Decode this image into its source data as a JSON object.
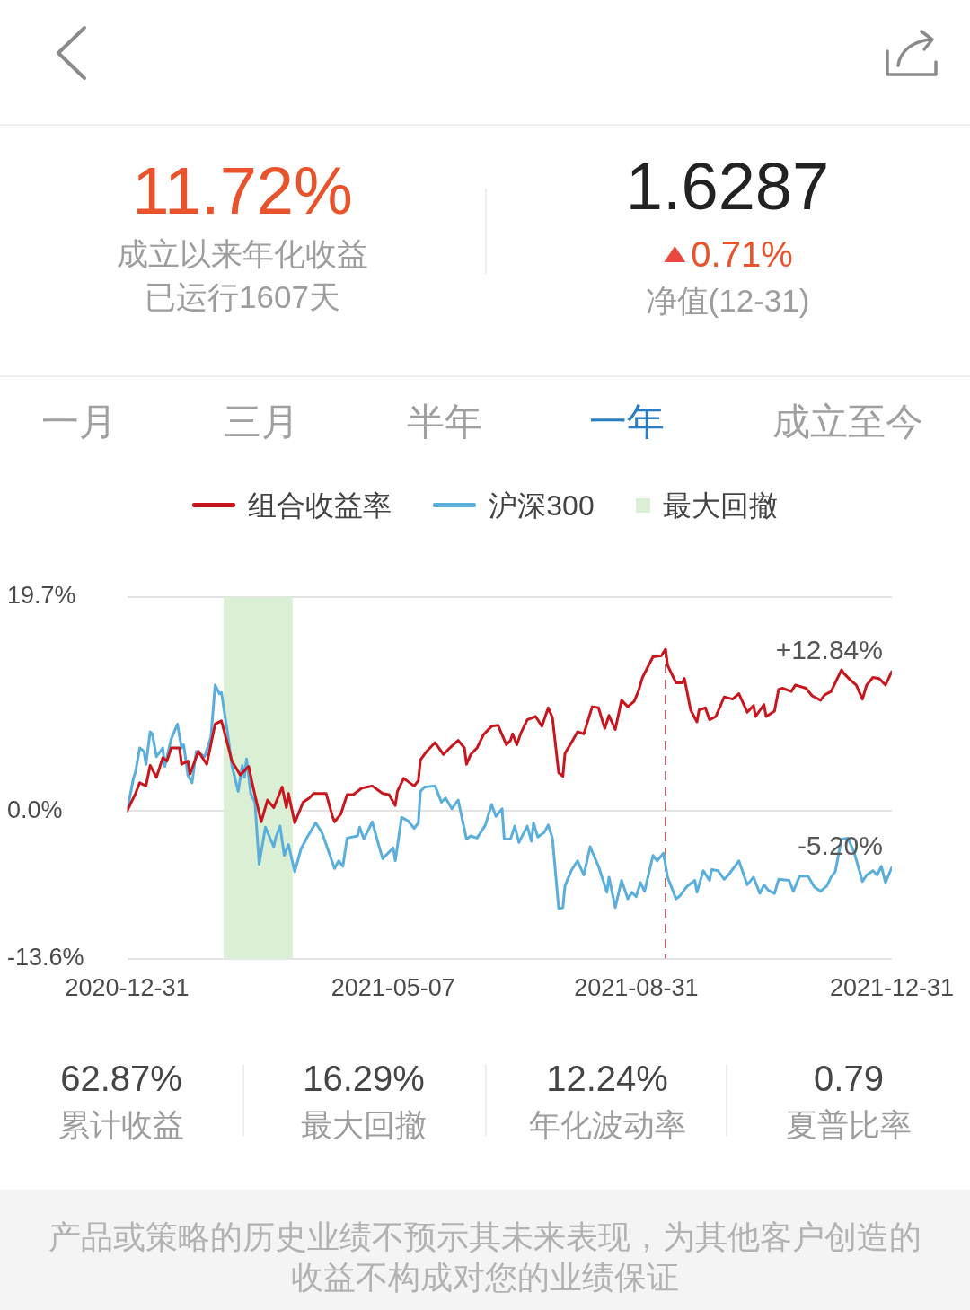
{
  "chart_data": [
    {
      "type": "other",
      "annotations": [
        "11.72%",
        "成立以来年化收益",
        "已运行1607天",
        "1.6287",
        "0.71%",
        "净值(12-31)",
        "一月",
        "三月",
        "半年",
        "一年",
        "成立至今"
      ]
    },
    {
      "type": "line",
      "legend": "top",
      "grid": "y",
      "marker": "none",
      "xlim": [
        "2020-12-31",
        "2021-12-31"
      ],
      "xticks": [
        "2020-12-31",
        "2021-05-07",
        "2021-08-31",
        "2021-12-31"
      ],
      "ylim": [
        -13.6,
        19.7
      ],
      "yticks": [
        {
          "value": 19.7,
          "label": "19.7%"
        },
        {
          "value": 0,
          "label": "0.0%"
        },
        {
          "value": -13.6,
          "label": "-13.6%"
        }
      ],
      "series": [
        {
          "name": "组合收益率",
          "color": "#c8161e",
          "x": [
            "2020-12-31",
            "2021-01-04",
            "2021-01-06",
            "2021-01-09",
            "2021-01-11",
            "2021-01-14",
            "2021-01-17",
            "2021-01-19",
            "2021-01-21",
            "2021-01-25",
            "2021-01-26",
            "2021-01-29",
            "2021-01-30",
            "2021-02-03",
            "2021-02-07",
            "2021-02-11",
            "2021-02-14",
            "2021-02-17",
            "2021-02-19",
            "2021-02-23",
            "2021-02-27",
            "2021-03-01",
            "2021-03-05",
            "2021-03-08",
            "2021-03-11",
            "2021-03-15",
            "2021-03-17",
            "2021-03-18",
            "2021-03-21",
            "2021-03-25",
            "2021-03-28",
            "2021-03-30",
            "2021-04-05",
            "2021-04-08",
            "2021-04-09",
            "2021-04-12",
            "2021-04-15",
            "2021-04-18",
            "2021-04-22",
            "2021-04-27",
            "2021-05-02",
            "2021-05-05",
            "2021-05-08",
            "2021-05-09",
            "2021-05-12",
            "2021-05-17",
            "2021-05-19",
            "2021-05-20",
            "2021-05-23",
            "2021-05-27",
            "2021-05-31",
            "2021-06-03",
            "2021-06-07",
            "2021-06-10",
            "2021-06-11",
            "2021-06-13",
            "2021-06-16",
            "2021-06-19",
            "2021-06-23",
            "2021-06-26",
            "2021-06-30",
            "2021-07-02",
            "2021-07-03",
            "2021-07-05",
            "2021-07-07",
            "2021-07-10",
            "2021-07-14",
            "2021-07-17",
            "2021-07-20",
            "2021-07-22",
            "2021-07-25",
            "2021-07-27",
            "2021-07-28",
            "2021-08-01",
            "2021-08-03",
            "2021-08-06",
            "2021-08-10",
            "2021-08-13",
            "2021-08-16",
            "2021-08-18",
            "2021-08-21",
            "2021-08-24",
            "2021-08-27",
            "2021-08-30",
            "2021-09-01",
            "2021-09-03",
            "2021-09-08",
            "2021-09-12",
            "2021-09-14",
            "2021-09-15",
            "2021-09-19",
            "2021-09-22",
            "2021-09-23",
            "2021-09-26",
            "2021-09-29",
            "2021-09-30",
            "2021-10-03",
            "2021-10-05",
            "2021-10-08",
            "2021-10-12",
            "2021-10-16",
            "2021-10-19",
            "2021-10-23",
            "2021-10-26",
            "2021-10-27",
            "2021-10-31",
            "2021-11-01",
            "2021-11-05",
            "2021-11-07",
            "2021-11-09",
            "2021-11-13",
            "2021-11-15",
            "2021-11-20",
            "2021-11-23",
            "2021-11-27",
            "2021-11-29",
            "2021-12-02",
            "2021-12-07",
            "2021-12-08",
            "2021-12-11",
            "2021-12-14",
            "2021-12-17",
            "2021-12-19",
            "2021-12-22",
            "2021-12-25",
            "2021-12-28",
            "2021-12-31"
          ],
          "values": [
            0,
            1.6,
            2.6,
            2.3,
            4.2,
            3.1,
            4.9,
            4.6,
            5.8,
            5.8,
            4.3,
            4.6,
            3.4,
            5.5,
            4.3,
            8.0,
            8.3,
            6.1,
            4.6,
            3.3,
            4.1,
            2.3,
            -1.0,
            1.0,
            0.3,
            2.2,
            0.3,
            1.6,
            -1.1,
            0.8,
            1.2,
            1.6,
            1.6,
            -0.5,
            -1.0,
            -0.3,
            1.5,
            1.5,
            2.1,
            2.3,
            1.6,
            1.5,
            0.5,
            1.8,
            3.0,
            2.3,
            2.8,
            4.7,
            5.5,
            6.3,
            5.2,
            5.8,
            6.5,
            5.8,
            4.3,
            5.2,
            5.8,
            7.0,
            7.8,
            7.9,
            6.1,
            6.5,
            7.1,
            6.1,
            7.2,
            8.4,
            8.7,
            7.8,
            9.5,
            8.6,
            3.5,
            3.2,
            5.3,
            6.6,
            7.3,
            7.1,
            9.6,
            9.5,
            7.6,
            8.8,
            7.5,
            10.2,
            9.6,
            10.1,
            11.0,
            12.3,
            14.2,
            14.3,
            14.9,
            13.4,
            11.8,
            11.8,
            12.2,
            9.3,
            8.2,
            9.3,
            9.5,
            8.4,
            8.7,
            10.5,
            10.3,
            10.8,
            9.1,
            9.7,
            8.7,
            9.8,
            8.7,
            9.2,
            11.2,
            11.3,
            11.0,
            11.6,
            11.3,
            10.6,
            10.2,
            10.7,
            11.0,
            13.0,
            12.7,
            12.1,
            11.6,
            10.3,
            11.6,
            12.3,
            12.2,
            11.6,
            12.84
          ]
        },
        {
          "name": "沪深300",
          "color": "#5aaedc",
          "x": [
            "2020-12-31",
            "2021-01-03",
            "2021-01-04",
            "2021-01-06",
            "2021-01-08",
            "2021-01-09",
            "2021-01-11",
            "2021-01-12",
            "2021-01-14",
            "2021-01-17",
            "2021-01-18",
            "2021-01-21",
            "2021-01-24",
            "2021-01-26",
            "2021-01-27",
            "2021-01-29",
            "2021-01-31",
            "2021-02-02",
            "2021-02-06",
            "2021-02-09",
            "2021-02-11",
            "2021-02-13",
            "2021-02-14",
            "2021-02-17",
            "2021-02-19",
            "2021-02-22",
            "2021-02-24",
            "2021-02-25",
            "2021-02-26",
            "2021-02-28",
            "2021-03-02",
            "2021-03-04",
            "2021-03-07",
            "2021-03-11",
            "2021-03-12",
            "2021-03-14",
            "2021-03-16",
            "2021-03-18",
            "2021-03-21",
            "2021-03-24",
            "2021-03-27",
            "2021-03-31",
            "2021-04-03",
            "2021-04-09",
            "2021-04-11",
            "2021-04-13",
            "2021-04-15",
            "2021-04-20",
            "2021-04-21",
            "2021-04-23",
            "2021-04-27",
            "2021-04-30",
            "2021-05-02",
            "2021-05-07",
            "2021-05-08",
            "2021-05-11",
            "2021-05-14",
            "2021-05-17",
            "2021-05-19",
            "2021-05-20",
            "2021-05-22",
            "2021-05-27",
            "2021-05-30",
            "2021-06-01",
            "2021-06-04",
            "2021-06-07",
            "2021-06-11",
            "2021-06-13",
            "2021-06-16",
            "2021-06-20",
            "2021-06-23",
            "2021-06-25",
            "2021-06-28",
            "2021-06-29",
            "2021-07-02",
            "2021-07-04",
            "2021-07-06",
            "2021-07-10",
            "2021-07-12",
            "2021-07-13",
            "2021-07-15",
            "2021-07-18",
            "2021-07-20",
            "2021-07-22",
            "2021-07-25",
            "2021-07-27",
            "2021-07-28",
            "2021-07-31",
            "2021-08-03",
            "2021-08-06",
            "2021-08-09",
            "2021-08-13",
            "2021-08-17",
            "2021-08-18",
            "2021-08-21",
            "2021-08-24",
            "2021-08-27",
            "2021-08-29",
            "2021-08-31",
            "2021-09-02",
            "2021-09-04",
            "2021-09-08",
            "2021-09-10",
            "2021-09-13",
            "2021-09-15",
            "2021-09-19",
            "2021-09-21",
            "2021-09-24",
            "2021-09-28",
            "2021-09-29",
            "2021-10-02",
            "2021-10-05",
            "2021-10-06",
            "2021-10-09",
            "2021-10-12",
            "2021-10-14",
            "2021-10-19",
            "2021-10-23",
            "2021-10-26",
            "2021-10-29",
            "2021-10-31",
            "2021-11-02",
            "2021-11-05",
            "2021-11-07",
            "2021-11-12",
            "2021-11-14",
            "2021-11-17",
            "2021-11-21",
            "2021-11-24",
            "2021-11-27",
            "2021-11-30",
            "2021-12-02",
            "2021-12-04",
            "2021-12-07",
            "2021-12-10",
            "2021-12-13",
            "2021-12-17",
            "2021-12-19",
            "2021-12-22",
            "2021-12-24",
            "2021-12-26",
            "2021-12-28",
            "2021-12-31"
          ],
          "values": [
            0,
            3.0,
            3.6,
            5.8,
            5.5,
            4.3,
            7.3,
            7.1,
            5.0,
            5.8,
            4.1,
            6.6,
            8.0,
            5.8,
            6.1,
            3.3,
            2.6,
            5.5,
            5.0,
            6.8,
            11.6,
            10.8,
            10.9,
            7.1,
            4.2,
            1.8,
            4.2,
            3.1,
            4.8,
            1.6,
            0.8,
            -4.9,
            -1.5,
            -3.3,
            -2.4,
            -1.4,
            -4.1,
            -3.1,
            -5.6,
            -3.5,
            -2.4,
            -1.1,
            -2.0,
            -5.3,
            -4.6,
            -5.1,
            -2.5,
            -2.3,
            -1.5,
            -2.6,
            -1.0,
            -3.1,
            -4.4,
            -3.4,
            -4.6,
            -0.6,
            -0.9,
            -1.6,
            -1.1,
            1.8,
            2.2,
            2.3,
            0.8,
            1.2,
            0.2,
            1.0,
            -2.6,
            -2.3,
            -2.5,
            -1.3,
            0.6,
            -0.5,
            0.2,
            -2.6,
            -2.6,
            -1.4,
            -2.9,
            -1.4,
            -2.8,
            -1.1,
            -2.4,
            -2.0,
            -1.3,
            -2.5,
            -9.0,
            -8.9,
            -6.9,
            -5.5,
            -4.6,
            -5.9,
            -3.3,
            -5.1,
            -7.5,
            -6.1,
            -8.9,
            -6.4,
            -8.1,
            -7.5,
            -7.9,
            -6.6,
            -7.4,
            -4.1,
            -4.6,
            -3.9,
            -6.1,
            -8.1,
            -7.8,
            -7.0,
            -6.4,
            -7.5,
            -5.5,
            -6.4,
            -5.4,
            -5.5,
            -6.3,
            -5.9,
            -4.6,
            -6.8,
            -6.1,
            -7.6,
            -6.8,
            -7.3,
            -7.6,
            -6.3,
            -6.4,
            -7.4,
            -6.0,
            -6.0,
            -7.0,
            -7.4,
            -6.9,
            -6.1,
            -5.6,
            -2.6,
            -2.5,
            -3.8,
            -6.5,
            -5.9,
            -5.5,
            -5.9,
            -5.1,
            -6.6,
            -5.2
          ]
        }
      ],
      "bands": [
        {
          "axis": "x",
          "from": "2021-02-15",
          "to": "2021-03-20",
          "label": "最大回撤",
          "color": "#daefd4"
        }
      ],
      "ref_lines": [
        {
          "axis": "x",
          "value": "2021-09-14",
          "color": "#b06a70",
          "line_style": "dashed"
        }
      ],
      "annotations": [
        {
          "text": "+12.84%",
          "x": "2021-12-31",
          "y": 12.84
        },
        {
          "text": "-5.20%",
          "x": "2021-12-31",
          "y": -5.2
        }
      ]
    },
    {
      "type": "other",
      "annotations": [
        "62.87%",
        "累计收益",
        "16.29%",
        "最大回撤",
        "12.24%",
        "年化波动率",
        "0.79",
        "夏普比率",
        "产品或策略的历史业绩不预示其未来表现，为其他客户创造的收益不构成对您的业绩保证"
      ]
    }
  ]
}
